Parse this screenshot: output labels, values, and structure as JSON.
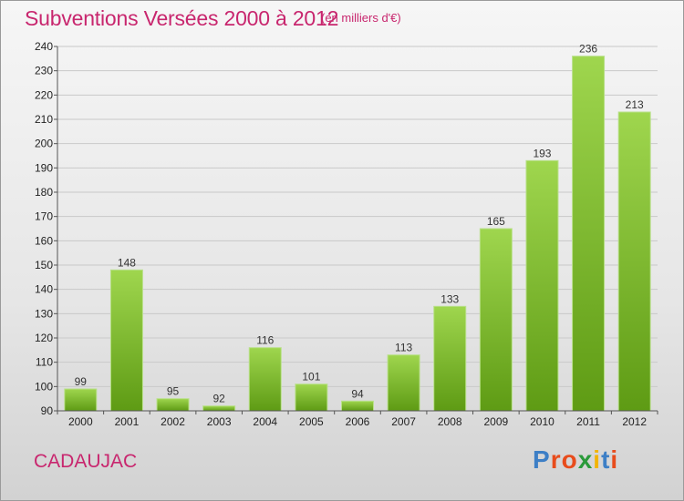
{
  "header": {
    "title": "Subventions Versées 2000 à 2012",
    "unit": "(en milliers d'€)"
  },
  "footer": {
    "commune": "CADAUJAC",
    "logo_text": "Proxiti",
    "logo_colors": [
      "#3d7fc6",
      "#e84c1c",
      "#e84c1c",
      "#2a9a3a",
      "#f2b400",
      "#3d7fc6",
      "#e84c1c"
    ]
  },
  "colors": {
    "bar_light": "#9fd64e",
    "bar_dark": "#5e9b14",
    "grid": "#c9c9c9",
    "text_accent": "#c8266e"
  },
  "chart_data": {
    "type": "bar",
    "title": "Subventions Versées 2000 à 2012",
    "subtitle": "(en milliers d'€)",
    "xlabel": "",
    "ylabel": "",
    "categories": [
      "2000",
      "2001",
      "2002",
      "2003",
      "2004",
      "2005",
      "2006",
      "2007",
      "2008",
      "2009",
      "2010",
      "2011",
      "2012"
    ],
    "values": [
      99,
      148,
      95,
      92,
      116,
      101,
      94,
      113,
      133,
      165,
      193,
      236,
      213
    ],
    "ylim": [
      90,
      240
    ],
    "yticks": [
      90,
      100,
      110,
      120,
      130,
      140,
      150,
      160,
      170,
      180,
      190,
      200,
      210,
      220,
      230,
      240
    ],
    "grid": true,
    "data_labels": true
  }
}
